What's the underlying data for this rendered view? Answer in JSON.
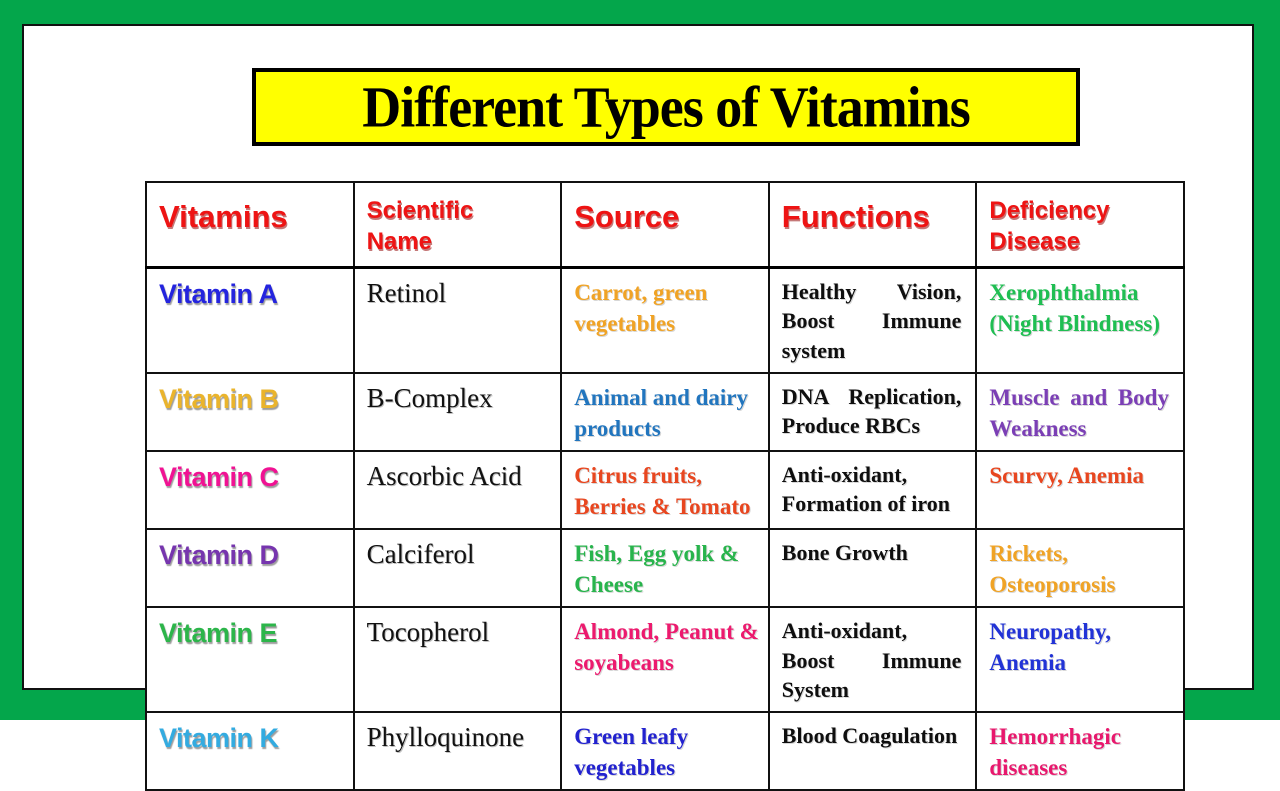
{
  "title": {
    "text": "Different Types of Vitamins",
    "banner_bg": "#FFFF00",
    "frame_color": "#04A64B"
  },
  "table": {
    "headers": [
      {
        "label": "Vitamins"
      },
      {
        "label": "Scientific\nName"
      },
      {
        "label": "Source"
      },
      {
        "label": "Functions"
      },
      {
        "label": "Deficiency\nDisease"
      }
    ],
    "header_color": "#EE1414",
    "rows": [
      {
        "vitamin": {
          "text": "Vitamin A",
          "color": "#2424DE"
        },
        "scientific": "Retinol",
        "source": {
          "text": "Carrot, green vegetables",
          "color": "#F0A325"
        },
        "functions": "Healthy Vision, Boost Immune system",
        "deficiency": {
          "text": "Xerophthalmia (Night Blindness)",
          "color": "#1FBE52"
        }
      },
      {
        "vitamin": {
          "text": "Vitamin B",
          "color": "#EAB42C"
        },
        "scientific": "B-Complex",
        "source": {
          "text": "Animal and dairy products",
          "color": "#2175BE"
        },
        "functions": "DNA Replication, Produce RBCs",
        "deficiency": {
          "text": "Muscle and Body Weakness",
          "color": "#7B3FB5"
        }
      },
      {
        "vitamin": {
          "text": "Vitamin C",
          "color": "#F01293"
        },
        "scientific": "Ascorbic Acid",
        "source": {
          "text": "Citrus fruits, Berries & Tomato",
          "color": "#E8461F"
        },
        "functions": "Anti-oxidant, Formation of iron",
        "deficiency": {
          "text": "Scurvy, Anemia",
          "color": "#E8461F"
        }
      },
      {
        "vitamin": {
          "text": "Vitamin D",
          "color": "#7635AE"
        },
        "scientific": "Calciferol",
        "source": {
          "text": "Fish, Egg yolk & Cheese",
          "color": "#28B44C"
        },
        "functions": "Bone Growth",
        "deficiency": {
          "text": "Rickets, Osteoporosis",
          "color": "#F0A325"
        }
      },
      {
        "vitamin": {
          "text": "Vitamin E",
          "color": "#2CB54A"
        },
        "scientific": "Tocopherol",
        "source": {
          "text": "Almond, Peanut & soyabeans",
          "color": "#EC1A6E"
        },
        "functions": "Anti-oxidant, Boost Immune System",
        "deficiency": {
          "text": "Neuropathy, Anemia",
          "color": "#2233D6"
        }
      },
      {
        "vitamin": {
          "text": "Vitamin K",
          "color": "#33ABE0"
        },
        "scientific": "Phylloquinone",
        "source": {
          "text": "Green leafy vegetables",
          "color": "#2222CF"
        },
        "functions": "Blood Coagulation",
        "deficiency": {
          "text": "Hemorrhagic diseases",
          "color": "#E8186D"
        }
      }
    ]
  }
}
